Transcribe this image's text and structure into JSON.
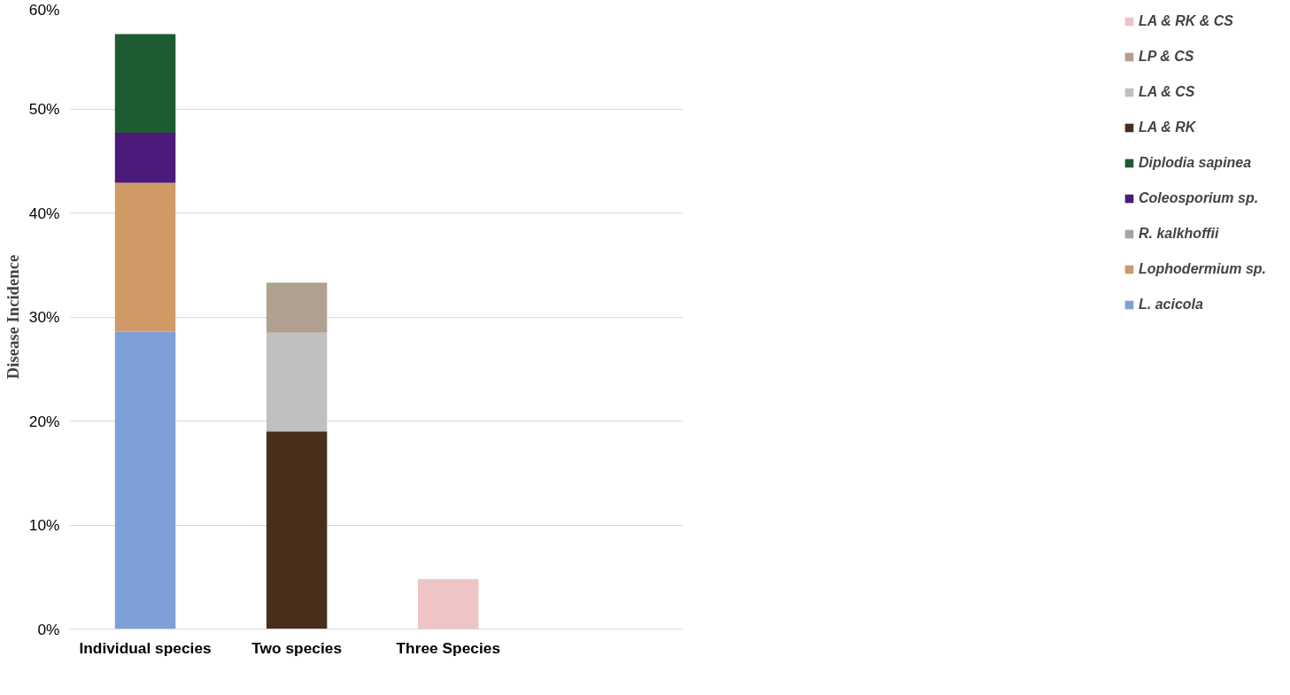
{
  "chart_data": {
    "type": "bar",
    "stacked": true,
    "ylabel": "Disease Incidence",
    "categories": [
      "Individual species",
      "Two species",
      "Three Species"
    ],
    "series": [
      {
        "name": "L. acicola",
        "color": "#7f9fd8",
        "values": [
          28.6,
          null,
          null
        ]
      },
      {
        "name": "Lophodermium sp.",
        "color": "#d09a66",
        "values": [
          14.3,
          null,
          null
        ]
      },
      {
        "name": "R. kalkhoffii",
        "color": "#a5a5a5",
        "values": [
          0,
          null,
          null
        ]
      },
      {
        "name": "Coleosporium sp.",
        "color": "#4b1a7a",
        "values": [
          4.8,
          null,
          null
        ]
      },
      {
        "name": "Diplodia sapinea",
        "color": "#1e5a32",
        "values": [
          9.5,
          null,
          null
        ]
      },
      {
        "name": "LA & RK",
        "color": "#4a2e1c",
        "values": [
          null,
          19.0,
          null
        ]
      },
      {
        "name": "LA & CS",
        "color": "#c0c0c0",
        "values": [
          null,
          9.5,
          null
        ]
      },
      {
        "name": "LP & CS",
        "color": "#b0a090",
        "values": [
          null,
          4.8,
          null
        ]
      },
      {
        "name": "LA & RK & CS",
        "color": "#efc4c4",
        "values": [
          null,
          null,
          4.8
        ]
      }
    ],
    "ylim": [
      0,
      60
    ],
    "yticks": [
      {
        "value": 0,
        "label": "0%"
      },
      {
        "value": 10,
        "label": "10%"
      },
      {
        "value": 20,
        "label": "20%"
      },
      {
        "value": 30,
        "label": "30%"
      },
      {
        "value": 40,
        "label": "40%"
      },
      {
        "value": 50,
        "label": "50%"
      },
      {
        "value": 60,
        "label": "60%"
      }
    ],
    "grid": "y",
    "legend": "right"
  }
}
